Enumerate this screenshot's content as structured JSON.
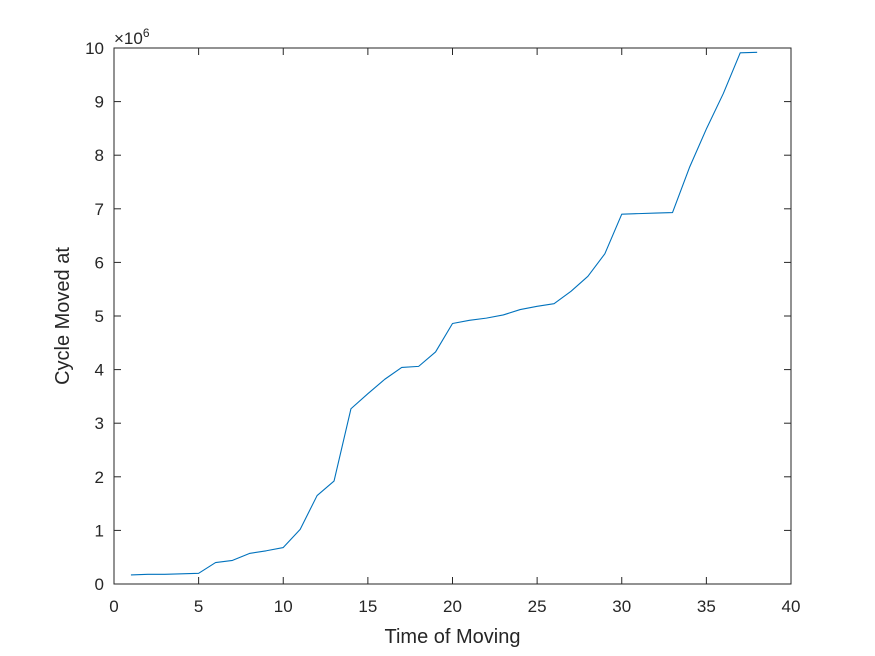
{
  "chart_data": {
    "type": "line",
    "title": "",
    "xlabel": "Time of Moving",
    "ylabel": "Cycle Moved at",
    "xlim": [
      0,
      40
    ],
    "ylim": [
      0,
      10
    ],
    "x_ticks": [
      0,
      5,
      10,
      15,
      20,
      25,
      30,
      35,
      40
    ],
    "y_ticks": [
      0,
      1,
      2,
      3,
      4,
      5,
      6,
      7,
      8,
      9,
      10
    ],
    "y_exponent": {
      "base": "×10",
      "power": "6"
    },
    "grid": false,
    "series": [
      {
        "color": "#0072BD",
        "x": [
          1,
          2,
          3,
          4,
          5,
          6,
          7,
          8,
          9,
          10,
          11,
          12,
          13,
          14,
          15,
          16,
          17,
          18,
          19,
          20,
          21,
          22,
          23,
          24,
          25,
          26,
          27,
          28,
          29,
          30,
          31,
          32,
          33,
          34,
          35,
          36,
          37,
          38
        ],
        "y": [
          0.17,
          0.18,
          0.18,
          0.19,
          0.2,
          0.4,
          0.44,
          0.57,
          0.62,
          0.68,
          1.02,
          1.65,
          1.92,
          3.27,
          3.55,
          3.82,
          4.04,
          4.06,
          4.33,
          4.86,
          4.92,
          4.96,
          5.02,
          5.12,
          5.18,
          5.23,
          5.46,
          5.74,
          6.16,
          6.9,
          6.91,
          6.92,
          6.93,
          7.77,
          8.49,
          9.15,
          9.91,
          9.92
        ]
      }
    ]
  }
}
